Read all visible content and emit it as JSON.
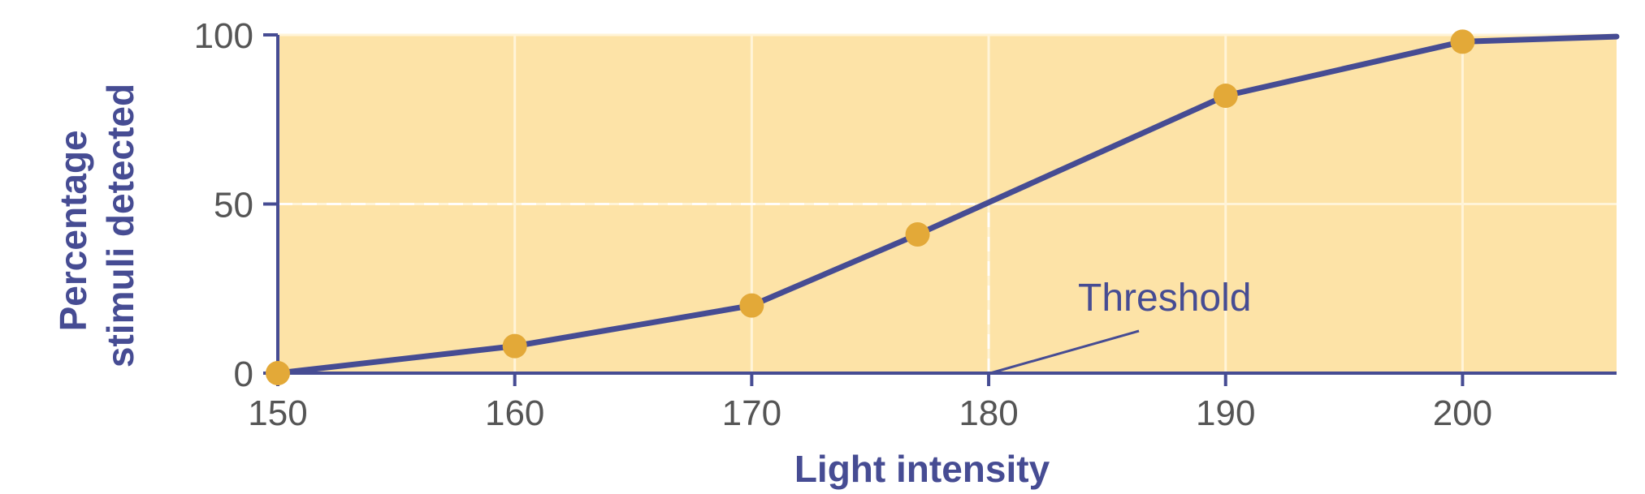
{
  "chart_data": {
    "type": "line",
    "title": "",
    "xlabel": "Light intensity",
    "ylabel_lines": [
      "Percentage",
      "stimuli detected"
    ],
    "x": [
      150,
      160,
      170,
      177,
      190,
      200,
      206.5
    ],
    "y": [
      0,
      8,
      20,
      41,
      82,
      98,
      99.5
    ],
    "marker_count": 6,
    "xlim": [
      150,
      206.5
    ],
    "ylim": [
      0,
      100
    ],
    "xticks": [
      150,
      160,
      170,
      180,
      190,
      200
    ],
    "yticks": [
      0,
      50,
      100
    ],
    "grid": true,
    "legend": "none",
    "annotations": [
      {
        "text": "Threshold",
        "points_to": {
          "x": 180,
          "y": 0
        }
      }
    ],
    "reference_lines": [
      {
        "y": 50,
        "x_from": 150,
        "x_to": 180,
        "style": "dashed"
      },
      {
        "x": 180,
        "y_from": 0,
        "y_to": 50,
        "style": "dashed"
      }
    ],
    "colors": {
      "plot_background": "#FDE3A7",
      "line": "#464C93",
      "marker": "#E3A938",
      "axis": "#464C93",
      "grid": "#FFF4D8",
      "tick_text": "#555555",
      "title_text": "#464C93"
    }
  }
}
